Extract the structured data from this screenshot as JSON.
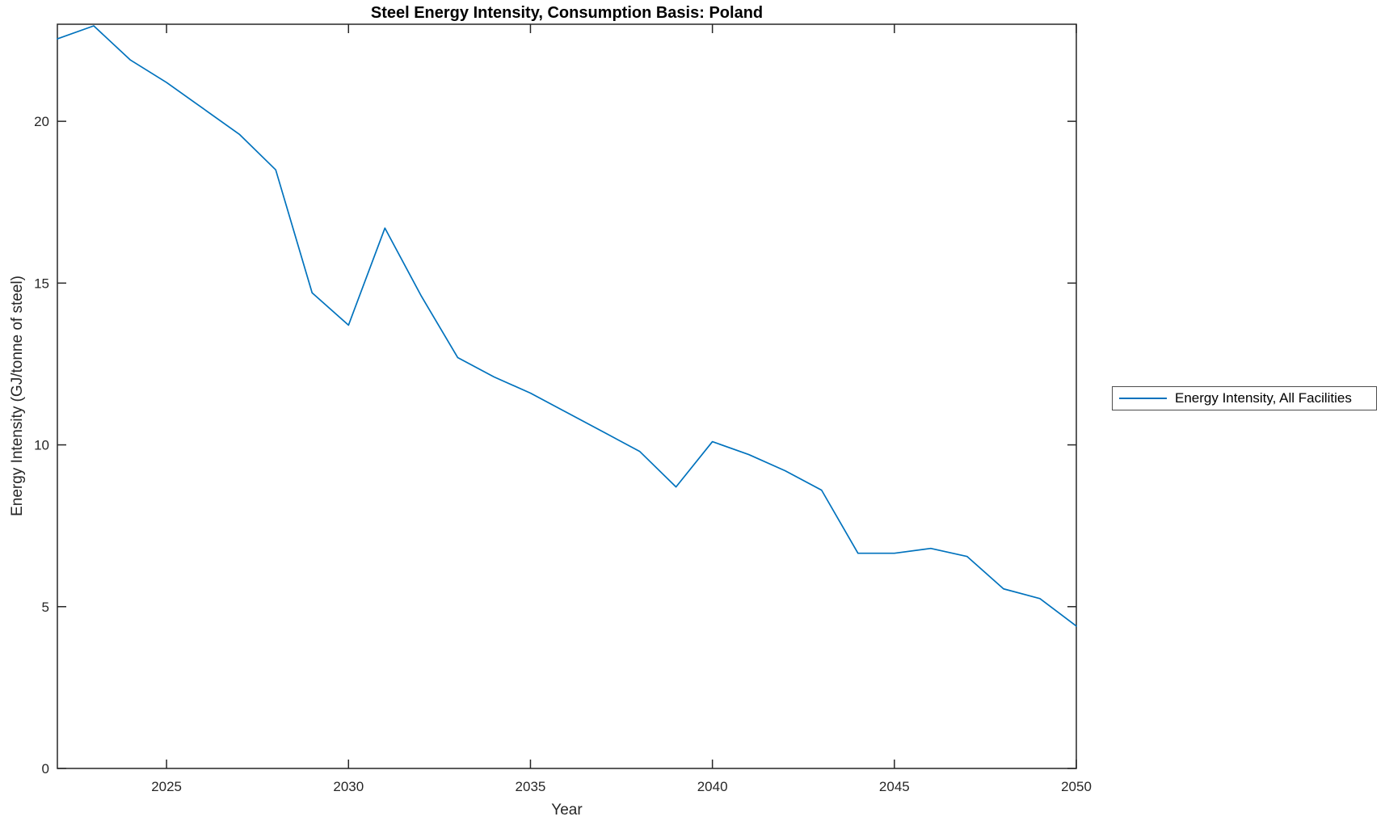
{
  "figure": {
    "background": "#ffffff"
  },
  "chart_data": {
    "type": "line",
    "title": "Steel Energy Intensity, Consumption Basis: Poland",
    "xlabel": "Year",
    "ylabel": "Energy Intensity (GJ/tonne of steel)",
    "xlim": [
      2022,
      2050
    ],
    "ylim": [
      0,
      23
    ],
    "x_ticks": [
      2025,
      2030,
      2035,
      2040,
      2045,
      2050
    ],
    "y_ticks": [
      0,
      5,
      10,
      15,
      20
    ],
    "grid": false,
    "legend_position": "outside-right",
    "series": [
      {
        "name": "Energy Intensity, All Facilities",
        "color": "#0072BD",
        "x": [
          2022,
          2023,
          2024,
          2025,
          2026,
          2027,
          2028,
          2029,
          2030,
          2031,
          2032,
          2033,
          2034,
          2035,
          2036,
          2037,
          2038,
          2039,
          2040,
          2041,
          2042,
          2043,
          2044,
          2045,
          2046,
          2047,
          2048,
          2049,
          2050
        ],
        "values": [
          22.55,
          22.95,
          21.9,
          21.2,
          20.4,
          19.6,
          18.5,
          14.7,
          13.7,
          16.7,
          14.6,
          12.7,
          12.1,
          11.6,
          11.0,
          10.4,
          9.8,
          8.7,
          10.1,
          9.7,
          9.2,
          8.6,
          6.65,
          6.65,
          6.8,
          6.55,
          5.55,
          5.25,
          4.4
        ]
      }
    ]
  },
  "colors": {
    "line": "#0072BD",
    "axis": "#262626",
    "tick_text": "#262626",
    "background": "#ffffff"
  }
}
